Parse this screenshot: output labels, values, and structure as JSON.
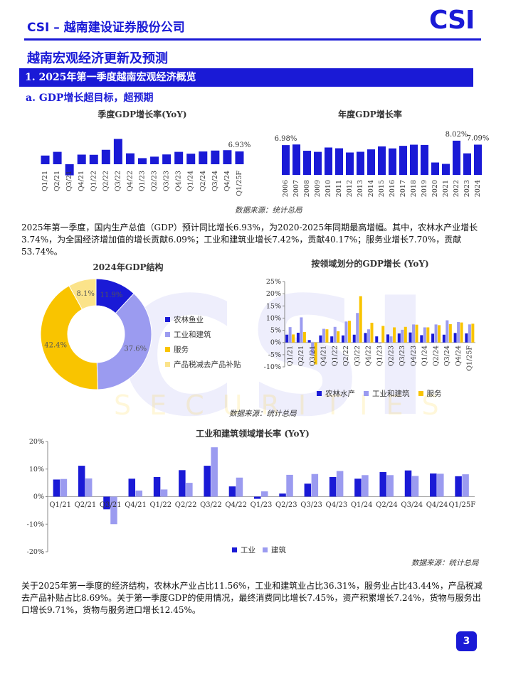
{
  "header": {
    "company": "CSI – 越南建设证券股份公司",
    "logo": "CSI"
  },
  "page_title": "越南宏观经济更新及预测",
  "section": "1. 2025年第一季度越南宏观经济概览",
  "subsection": "a. GDP增长超目标，超预期",
  "watermark": {
    "main": "CSI",
    "sub": "SECURITIES"
  },
  "colors": {
    "blue": "#1a1ad6",
    "light_blue": "#9b9bf0",
    "yellow": "#f9c400",
    "light_yellow": "#fbe38a"
  },
  "source_label": "数据来源：统计总局",
  "paragraph1": "2025年第一季度，国内生产总值（GDP）预计同比增长6.93%，为2020-2025年同期最高增幅。其中，农林水产业增长3.74%，为全国经济增加值的增长贡献6.09%；工业和建筑业增长7.42%，贡献40.17%；服务业增长7.70%，贡献53.74%。",
  "paragraph2": "关于2025年第一季度的经济结构，农林水产业占比11.56%，工业和建筑业占比36.31%，服务业占比43.44%，产品税减去产品补贴占比8.69%。关于第一季度GDP的使用情况，最终消费同比增长7.45%，资产积累增长7.24%，货物与服务出口增长9.71%，货物与服务进口增长12.45%。",
  "page_number": "3",
  "chart_data": [
    {
      "type": "bar",
      "title": "季度GDP增长率(YoY)",
      "categories": [
        "Q1/21",
        "Q2/21",
        "Q3/21",
        "Q4/21",
        "Q1/22",
        "Q2/22",
        "Q3/22",
        "Q4/22",
        "Q1/23",
        "Q2/23",
        "Q3/23",
        "Q4/23",
        "Q1/24",
        "Q2/24",
        "Q3/24",
        "Q4/24",
        "Q1/25F"
      ],
      "values": [
        4.7,
        6.7,
        -6.0,
        5.2,
        5.1,
        7.8,
        13.7,
        5.9,
        3.3,
        4.1,
        5.3,
        6.7,
        5.7,
        6.9,
        7.4,
        7.6,
        6.93
      ],
      "ylim": [
        -8,
        15
      ],
      "labels": [
        {
          "index": 16,
          "text": "6.93%"
        }
      ],
      "color": "#1a1ad6"
    },
    {
      "type": "bar",
      "title": "年度GDP增长率",
      "categories": [
        "2006",
        "2007",
        "2008",
        "2009",
        "2010",
        "2011",
        "2012",
        "2013",
        "2014",
        "2015",
        "2016",
        "2017",
        "2018",
        "2019",
        "2020",
        "2021",
        "2022",
        "2023",
        "2024"
      ],
      "values": [
        6.98,
        7.13,
        5.66,
        5.4,
        6.42,
        6.24,
        5.25,
        5.42,
        5.98,
        6.68,
        6.21,
        6.81,
        7.08,
        7.02,
        2.91,
        2.58,
        8.02,
        5.05,
        7.09
      ],
      "ylim": [
        0,
        9
      ],
      "labels": [
        {
          "index": 0,
          "text": "6.98%"
        },
        {
          "index": 16,
          "text": "8.02%"
        },
        {
          "index": 18,
          "text": "7.09%"
        }
      ],
      "color": "#1a1ad6"
    },
    {
      "type": "pie",
      "title": "2024年GDP结构",
      "categories": [
        "农林鱼业",
        "工业和建筑",
        "服务",
        "产品税减去产品补贴"
      ],
      "values": [
        11.9,
        37.6,
        42.4,
        8.1
      ],
      "labels": [
        "11.9%",
        "37.6%",
        "42.4%",
        "8.1%"
      ],
      "colors": [
        "#1a1ad6",
        "#9b9bf0",
        "#f9c400",
        "#fbe38a"
      ]
    },
    {
      "type": "bar",
      "title": "按领域划分的GDP增长 (YoY)",
      "categories": [
        "Q1/21",
        "Q2/21",
        "Q3/21",
        "Q4/21",
        "Q1/22",
        "Q2/22",
        "Q3/22",
        "Q4/22",
        "Q1/23",
        "Q2/23",
        "Q3/23",
        "Q4/23",
        "Q1/24",
        "Q2/24",
        "Q3/24",
        "Q4/24",
        "Q1/25F"
      ],
      "series": [
        {
          "name": "农林水产",
          "color": "#1a1ad6",
          "values": [
            3.2,
            4.0,
            1.0,
            2.9,
            2.5,
            2.9,
            3.2,
            3.9,
            2.5,
            3.3,
            3.7,
            4.1,
            3.0,
            3.6,
            3.2,
            3.9,
            3.74
          ]
        },
        {
          "name": "工业和建筑",
          "color": "#9b9bf0",
          "values": [
            6.3,
            10.3,
            -5.0,
            5.6,
            6.4,
            8.6,
            12.1,
            5.4,
            -0.4,
            2.5,
            5.2,
            7.4,
            6.2,
            7.4,
            9.1,
            8.4,
            7.42
          ]
        },
        {
          "name": "服务",
          "color": "#f9c400",
          "values": [
            3.3,
            4.3,
            -9.0,
            5.4,
            4.6,
            8.9,
            19.0,
            8.1,
            6.8,
            6.2,
            6.4,
            7.3,
            6.2,
            7.1,
            7.5,
            8.2,
            7.7
          ]
        }
      ],
      "yticks": [
        "25%",
        "20%",
        "15%",
        "10%",
        "5%",
        "0%",
        "-5%",
        "-10%"
      ],
      "ylim": [
        -10,
        25
      ]
    },
    {
      "type": "bar",
      "title": "工业和建筑领域增长率 (YoY)",
      "categories": [
        "Q1/21",
        "Q2/21",
        "Q3/21",
        "Q4/21",
        "Q1/22",
        "Q2/22",
        "Q3/22",
        "Q4/22",
        "Q1/23",
        "Q2/23",
        "Q3/23",
        "Q4/23",
        "Q1/24",
        "Q2/24",
        "Q3/24",
        "Q4/24",
        "Q1/25F"
      ],
      "series": [
        {
          "name": "工业",
          "color": "#1a1ad6",
          "values": [
            6.2,
            11.2,
            -4.6,
            6.5,
            7.1,
            9.6,
            11.2,
            3.7,
            -0.8,
            1.1,
            4.7,
            7.1,
            6.5,
            8.9,
            9.5,
            8.4,
            7.4
          ]
        },
        {
          "name": "建筑",
          "color": "#9b9bf0",
          "values": [
            6.4,
            6.6,
            -10.0,
            2.2,
            2.6,
            5.0,
            17.9,
            6.9,
            1.9,
            7.9,
            8.2,
            9.3,
            7.8,
            7.8,
            7.5,
            8.3,
            8.1
          ]
        }
      ],
      "yticks": [
        "20%",
        "10%",
        "0%",
        "-10%",
        "-20%"
      ],
      "ylim": [
        -20,
        20
      ]
    }
  ]
}
